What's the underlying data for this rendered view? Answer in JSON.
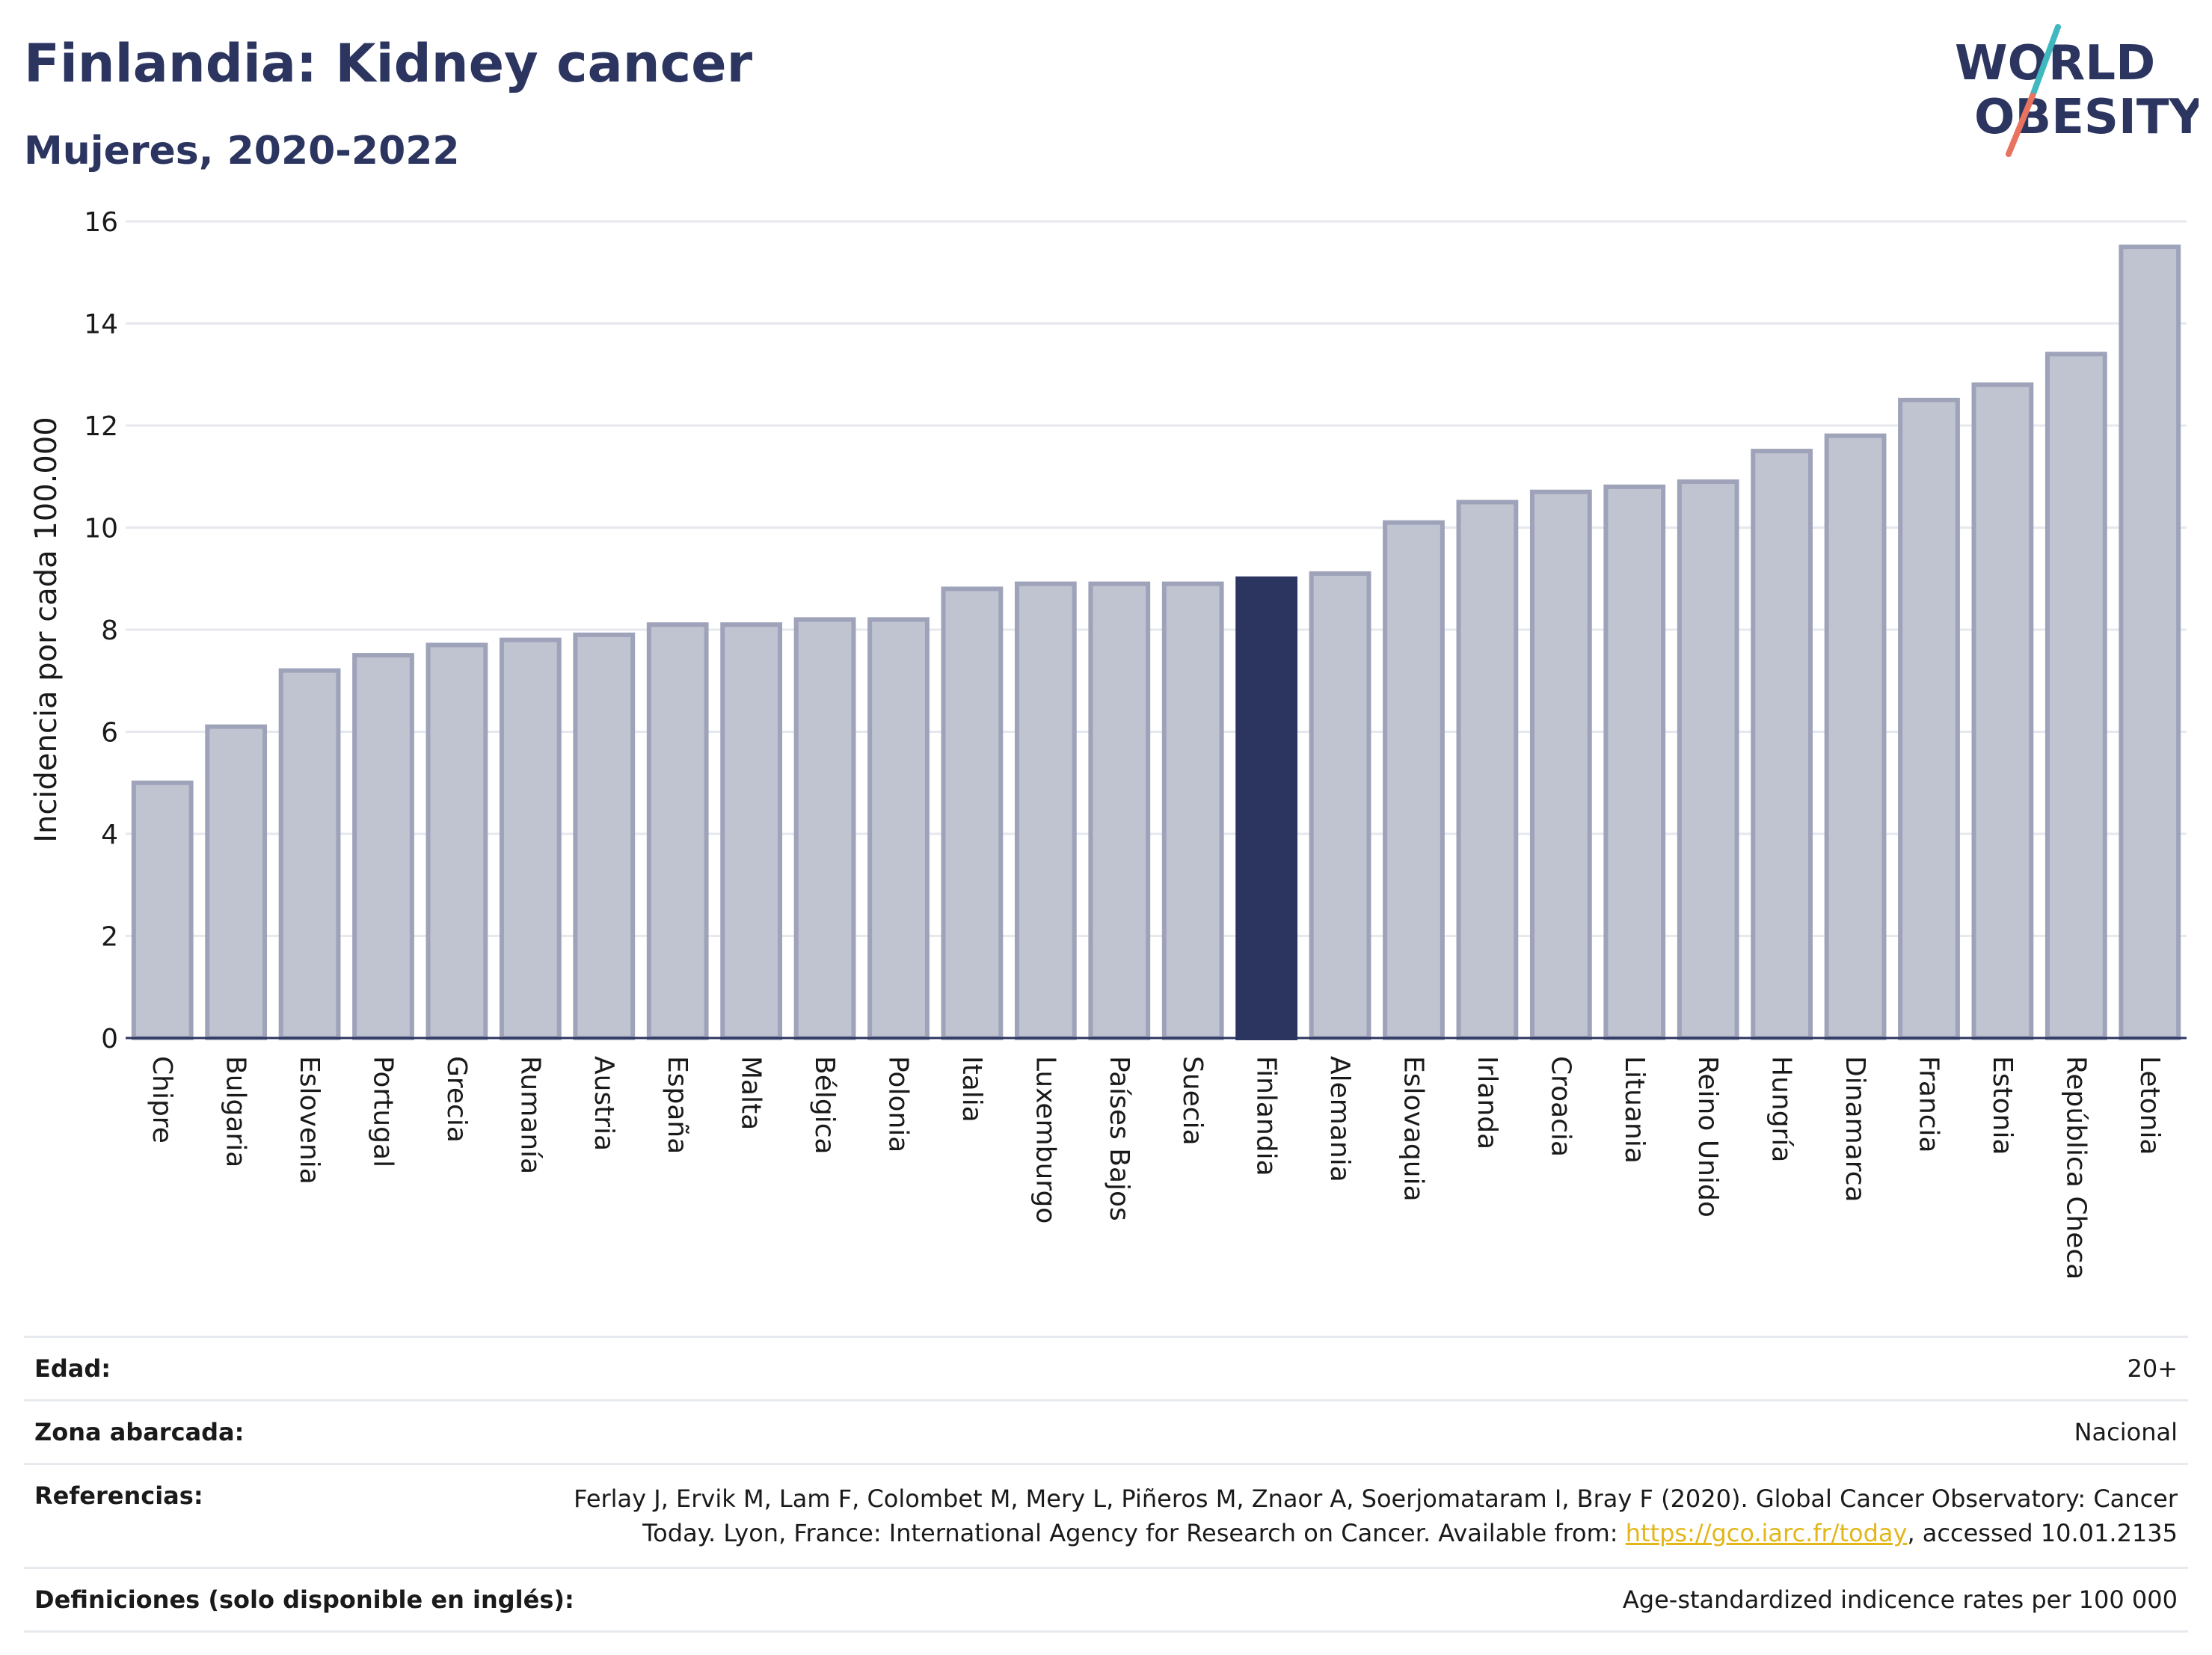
{
  "header": {
    "title": "Finlandia: Kidney cancer",
    "subtitle": "Mujeres, 2020-2022",
    "logo_line1": "WORLD",
    "logo_line2": "OBESITY"
  },
  "colors": {
    "accent": "#2b3560",
    "bar_fill": "#c0c3d0",
    "bar_stroke": "#9ea3ba",
    "highlight": "#2b3560",
    "link": "#e3b619",
    "logo_teal": "#3fb8c0",
    "logo_coral": "#e8735e"
  },
  "chart_data": {
    "type": "bar",
    "ylabel": "Incidencia por cada 100.000",
    "ylim": [
      0,
      16
    ],
    "yticks": [
      0,
      2,
      4,
      6,
      8,
      10,
      12,
      14,
      16
    ],
    "grid": true,
    "highlight": "Finlandia",
    "categories": [
      "Chipre",
      "Bulgaria",
      "Eslovenia",
      "Portugal",
      "Grecia",
      "Rumanía",
      "Austria",
      "España",
      "Malta",
      "Bélgica",
      "Polonia",
      "Italia",
      "Luxemburgo",
      "Países Bajos",
      "Suecia",
      "Finlandia",
      "Alemania",
      "Eslovaquia",
      "Irlanda",
      "Croacia",
      "Lituania",
      "Reino Unido",
      "Hungría",
      "Dinamarca",
      "Francia",
      "Estonia",
      "República Checa",
      "Letonia"
    ],
    "values": [
      5.0,
      6.1,
      7.2,
      7.5,
      7.7,
      7.8,
      7.9,
      8.1,
      8.1,
      8.2,
      8.2,
      8.8,
      8.9,
      8.9,
      8.9,
      9.0,
      9.1,
      10.1,
      10.5,
      10.7,
      10.8,
      10.9,
      11.5,
      11.8,
      12.5,
      12.8,
      13.4,
      15.5
    ]
  },
  "footer": {
    "age_label": "Edad:",
    "age_value": "20+",
    "zone_label": "Zona abarcada:",
    "zone_value": "Nacional",
    "ref_label": "Referencias:",
    "ref_line1": "Ferlay J, Ervik M, Lam F, Colombet M, Mery L, Piñeros M, Znaor A, Soerjomataram I, Bray F (2020). Global Cancer Observatory: Cancer",
    "ref_line2_pre": "Today. Lyon, France: International Agency for Research on Cancer. Available from: ",
    "ref_link": "https://gco.iarc.fr/today",
    "ref_line2_post": ", accessed 10.01.2135",
    "def_label": "Definiciones (solo disponible en inglés):",
    "def_value": "Age-standardized indicence rates per 100 000"
  }
}
